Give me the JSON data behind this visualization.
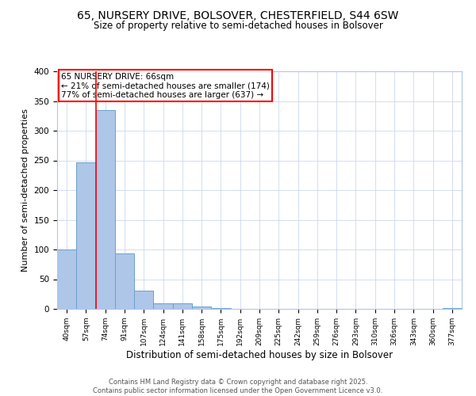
{
  "title_line1": "65, NURSERY DRIVE, BOLSOVER, CHESTERFIELD, S44 6SW",
  "title_line2": "Size of property relative to semi-detached houses in Bolsover",
  "xlabel": "Distribution of semi-detached houses by size in Bolsover",
  "ylabel": "Number of semi-detached properties",
  "bin_labels": [
    "40sqm",
    "57sqm",
    "74sqm",
    "91sqm",
    "107sqm",
    "124sqm",
    "141sqm",
    "158sqm",
    "175sqm",
    "192sqm",
    "209sqm",
    "225sqm",
    "242sqm",
    "259sqm",
    "276sqm",
    "293sqm",
    "310sqm",
    "326sqm",
    "343sqm",
    "360sqm",
    "377sqm"
  ],
  "bar_values": [
    100,
    247,
    335,
    93,
    31,
    10,
    9,
    4,
    2,
    0,
    0,
    0,
    0,
    0,
    0,
    0,
    0,
    0,
    0,
    0,
    2
  ],
  "bar_color": "#aec6e8",
  "bar_edge_color": "#6aa0cc",
  "red_line_x": 1.5,
  "annotation_title": "65 NURSERY DRIVE: 66sqm",
  "annotation_line1": "← 21% of semi-detached houses are smaller (174)",
  "annotation_line2": "77% of semi-detached houses are larger (637) →",
  "footer_line1": "Contains HM Land Registry data © Crown copyright and database right 2025.",
  "footer_line2": "Contains public sector information licensed under the Open Government Licence v3.0.",
  "ylim": [
    0,
    400
  ],
  "yticks": [
    0,
    50,
    100,
    150,
    200,
    250,
    300,
    350,
    400
  ]
}
